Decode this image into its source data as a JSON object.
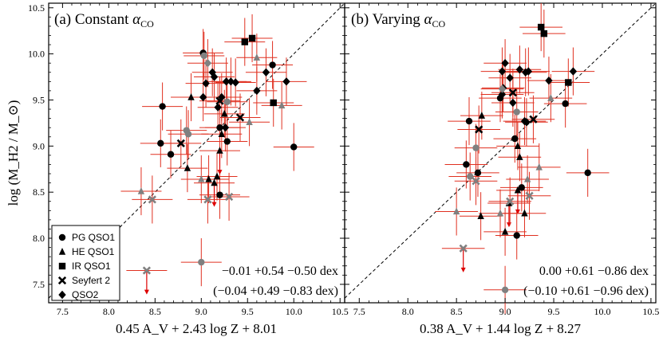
{
  "chart_data": [
    {
      "type": "scatter",
      "panel_label": "(a)",
      "title_text": "Constant ",
      "title_symbol": "α",
      "title_sub": "CO",
      "xlabel": "0.45 A_V + 2.43 log Z + 8.01",
      "ylabel": "log (M_H2 / M_⊙)",
      "xlim": [
        7.35,
        10.55
      ],
      "ylim": [
        7.3,
        10.55
      ],
      "xticks": [
        "7.5",
        "8.0",
        "8.5",
        "9.0",
        "9.5",
        "10.0",
        "10.5"
      ],
      "yticks": [
        "7.5",
        "8.0",
        "8.5",
        "9.0",
        "9.5",
        "10.0",
        "10.5"
      ],
      "one_to_one_line": true,
      "stat_line1": "−0.01 +0.54 −0.50 dex",
      "stat_line2": "(−0.04 +0.49 −0.83 dex)",
      "legend": {
        "placement": "bottom-left",
        "entries": [
          {
            "label": "PG QSO1",
            "marker": "circle"
          },
          {
            "label": "HE QSO1",
            "marker": "triangle"
          },
          {
            "label": "IR QSO1",
            "marker": "square"
          },
          {
            "label": "Seyfert 2",
            "marker": "cross"
          },
          {
            "label": "QSO2",
            "marker": "diamond"
          }
        ]
      },
      "series": [
        {
          "name": "PG QSO1",
          "marker": "circle",
          "points": [
            {
              "x": 8.58,
              "y": 9.43
            },
            {
              "x": 8.56,
              "y": 9.03
            },
            {
              "x": 8.67,
              "y": 8.91
            },
            {
              "x": 9.02,
              "y": 10.01
            },
            {
              "x": 9.2,
              "y": 9.2
            },
            {
              "x": 9.28,
              "y": 9.05
            },
            {
              "x": 9.2,
              "y": 8.47
            },
            {
              "x": 9.77,
              "y": 9.88
            },
            {
              "x": 10.0,
              "y": 8.99
            },
            {
              "x": 9.03,
              "y": 9.98,
              "gray": true
            },
            {
              "x": 8.84,
              "y": 9.17,
              "gray": true
            },
            {
              "x": 8.86,
              "y": 9.13,
              "gray": true
            },
            {
              "x": 9.0,
              "y": 7.74,
              "gray": true
            },
            {
              "x": 9.28,
              "y": 9.48,
              "gray": true
            }
          ]
        },
        {
          "name": "HE QSO1",
          "marker": "triangle",
          "points": [
            {
              "x": 8.89,
              "y": 9.53
            },
            {
              "x": 9.22,
              "y": 9.13
            },
            {
              "x": 9.2,
              "y": 8.95,
              "ul": true
            },
            {
              "x": 8.85,
              "y": 8.76
            },
            {
              "x": 9.08,
              "y": 8.64
            },
            {
              "x": 9.17,
              "y": 8.67
            },
            {
              "x": 9.25,
              "y": 9.35
            },
            {
              "x": 9.14,
              "y": 8.6,
              "ul": true
            },
            {
              "x": 8.35,
              "y": 8.51,
              "gray": true
            },
            {
              "x": 9.0,
              "y": 8.64,
              "gray": true
            },
            {
              "x": 9.6,
              "y": 9.96,
              "gray": true
            },
            {
              "x": 9.52,
              "y": 9.26,
              "gray": true
            },
            {
              "x": 9.87,
              "y": 9.44,
              "gray": true
            }
          ]
        },
        {
          "name": "IR QSO1",
          "marker": "square",
          "points": [
            {
              "x": 9.47,
              "y": 10.13
            },
            {
              "x": 9.55,
              "y": 10.17
            },
            {
              "x": 9.78,
              "y": 9.47
            }
          ]
        },
        {
          "name": "Seyfert 2",
          "marker": "cross",
          "points": [
            {
              "x": 8.78,
              "y": 9.03
            },
            {
              "x": 9.2,
              "y": 9.49
            },
            {
              "x": 9.42,
              "y": 9.31
            },
            {
              "x": 8.47,
              "y": 8.42,
              "gray": true
            },
            {
              "x": 8.41,
              "y": 7.65,
              "gray": true,
              "ul": true
            },
            {
              "x": 9.07,
              "y": 8.42,
              "gray": true
            },
            {
              "x": 9.3,
              "y": 8.45,
              "gray": true
            }
          ]
        },
        {
          "name": "QSO2",
          "marker": "diamond",
          "points": [
            {
              "x": 9.12,
              "y": 9.8
            },
            {
              "x": 9.14,
              "y": 9.75
            },
            {
              "x": 9.02,
              "y": 9.53
            },
            {
              "x": 9.05,
              "y": 9.68
            },
            {
              "x": 9.27,
              "y": 9.7
            },
            {
              "x": 9.32,
              "y": 9.7
            },
            {
              "x": 9.37,
              "y": 9.69
            },
            {
              "x": 9.22,
              "y": 9.53
            },
            {
              "x": 9.18,
              "y": 9.42
            },
            {
              "x": 9.26,
              "y": 9.2
            },
            {
              "x": 9.6,
              "y": 9.6
            },
            {
              "x": 9.7,
              "y": 9.8
            },
            {
              "x": 9.92,
              "y": 9.7
            },
            {
              "x": 9.07,
              "y": 9.9,
              "gray": true
            }
          ]
        }
      ]
    },
    {
      "type": "scatter",
      "panel_label": "(b)",
      "title_text": "Varying ",
      "title_symbol": "α",
      "title_sub": "CO",
      "xlabel": "0.38 A_V + 1.44 log Z + 8.27",
      "ylabel": "",
      "xlim": [
        7.35,
        10.55
      ],
      "ylim": [
        7.3,
        10.55
      ],
      "xticks": [
        "7.5",
        "8.0",
        "8.5",
        "9.0",
        "9.5",
        "10.0",
        "10.5"
      ],
      "yticks": [],
      "one_to_one_line": true,
      "stat_line1": "0.00 +0.61 −0.86 dex",
      "stat_line2": "(−0.10 +0.61 −0.96 dex)",
      "series": [
        {
          "name": "PG QSO1",
          "marker": "circle",
          "points": [
            {
              "x": 8.63,
              "y": 9.27
            },
            {
              "x": 8.6,
              "y": 8.8
            },
            {
              "x": 8.72,
              "y": 8.71
            },
            {
              "x": 9.1,
              "y": 9.08
            },
            {
              "x": 9.17,
              "y": 8.55
            },
            {
              "x": 9.12,
              "y": 8.03
            },
            {
              "x": 8.95,
              "y": 9.52
            },
            {
              "x": 9.62,
              "y": 9.46
            },
            {
              "x": 9.85,
              "y": 8.71
            },
            {
              "x": 8.7,
              "y": 8.98,
              "gray": true
            },
            {
              "x": 8.64,
              "y": 8.67,
              "gray": true
            },
            {
              "x": 9.0,
              "y": 7.44,
              "gray": true
            },
            {
              "x": 9.12,
              "y": 9.37,
              "gray": true
            }
          ]
        },
        {
          "name": "HE QSO1",
          "marker": "triangle",
          "points": [
            {
              "x": 8.76,
              "y": 9.33
            },
            {
              "x": 9.15,
              "y": 8.88
            },
            {
              "x": 9.13,
              "y": 8.52,
              "ul": true
            },
            {
              "x": 8.75,
              "y": 8.24
            },
            {
              "x": 9.0,
              "y": 8.07
            },
            {
              "x": 9.2,
              "y": 8.27
            },
            {
              "x": 9.13,
              "y": 9.0
            },
            {
              "x": 9.04,
              "y": 8.38,
              "ul": true
            },
            {
              "x": 8.5,
              "y": 8.29,
              "gray": true
            },
            {
              "x": 8.95,
              "y": 8.27,
              "gray": true
            },
            {
              "x": 9.47,
              "y": 9.52,
              "gray": true
            },
            {
              "x": 9.35,
              "y": 8.77,
              "gray": true
            },
            {
              "x": 9.23,
              "y": 8.64,
              "gray": true
            }
          ]
        },
        {
          "name": "IR QSO1",
          "marker": "square",
          "points": [
            {
              "x": 9.37,
              "y": 10.29
            },
            {
              "x": 9.4,
              "y": 10.22
            },
            {
              "x": 9.65,
              "y": 9.69
            }
          ]
        },
        {
          "name": "Seyfert 2",
          "marker": "cross",
          "points": [
            {
              "x": 8.73,
              "y": 9.18
            },
            {
              "x": 9.08,
              "y": 9.58
            },
            {
              "x": 9.29,
              "y": 9.29
            },
            {
              "x": 8.7,
              "y": 8.62,
              "gray": true
            },
            {
              "x": 8.57,
              "y": 7.89,
              "gray": true,
              "ul": true
            },
            {
              "x": 9.05,
              "y": 8.4,
              "gray": true
            },
            {
              "x": 9.25,
              "y": 8.46,
              "gray": true
            }
          ]
        },
        {
          "name": "QSO2",
          "marker": "diamond",
          "points": [
            {
              "x": 8.97,
              "y": 9.81
            },
            {
              "x": 9.05,
              "y": 9.74
            },
            {
              "x": 8.97,
              "y": 9.56
            },
            {
              "x": 8.98,
              "y": 9.63
            },
            {
              "x": 9.15,
              "y": 9.83
            },
            {
              "x": 9.21,
              "y": 9.8
            },
            {
              "x": 9.24,
              "y": 9.81
            },
            {
              "x": 9.08,
              "y": 9.47
            },
            {
              "x": 9.2,
              "y": 9.27
            },
            {
              "x": 9.22,
              "y": 9.26
            },
            {
              "x": 9.45,
              "y": 9.71
            },
            {
              "x": 9.7,
              "y": 9.81
            },
            {
              "x": 9.0,
              "y": 9.9
            },
            {
              "x": 8.97,
              "y": 9.62,
              "gray": true
            }
          ]
        }
      ]
    }
  ],
  "colors": {
    "marker_black": "#000000",
    "marker_gray": "#808080",
    "errorbar": "#e03020",
    "upper_limit": "#dd0000",
    "axes": "#000000"
  }
}
